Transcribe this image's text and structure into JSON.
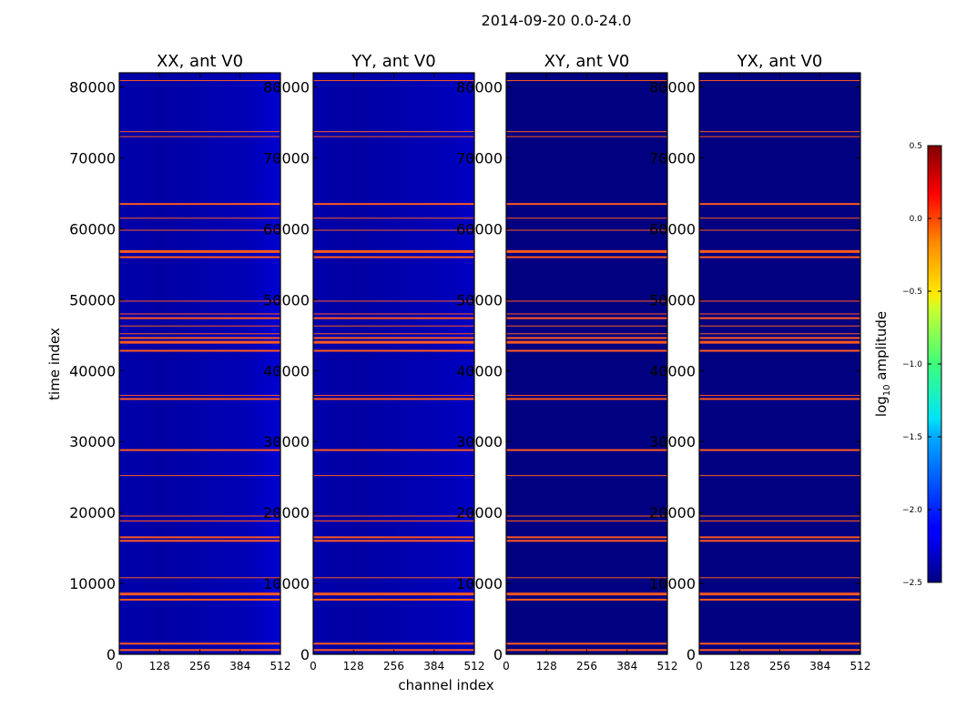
{
  "suptitle": "2014-09-20 0.0-24.0",
  "xlabel": "channel index",
  "ylabel": "time index",
  "colorbar": {
    "label_main": "log",
    "label_sub": "10",
    "label_rest": " amplitude",
    "range": [
      -2.5,
      0.5
    ],
    "ticks": [
      -2.5,
      -2.0,
      -1.5,
      -1.0,
      -0.5,
      0.0,
      0.5
    ],
    "tick_labels": [
      "−2.5",
      "−2.0",
      "−1.5",
      "−1.0",
      "−0.5",
      "0.0",
      "0.5"
    ]
  },
  "chart_data": {
    "type": "heatmap",
    "colormap": "jet",
    "xlim": [
      0,
      512
    ],
    "ylim": [
      0,
      82000
    ],
    "xticks": [
      0,
      128,
      256,
      384,
      512
    ],
    "yticks": [
      0,
      10000,
      20000,
      30000,
      40000,
      50000,
      60000,
      70000,
      80000
    ],
    "panels": [
      {
        "title": "XX, ant V0",
        "base_log_amp": -2.4,
        "edge_log_amp": -2.25,
        "vignette": true
      },
      {
        "title": "YY, ant V0",
        "base_log_amp": -2.4,
        "edge_log_amp": -2.3,
        "vignette": true
      },
      {
        "title": "XY, ant V0",
        "base_log_amp": -2.5,
        "edge_log_amp": -2.5,
        "vignette": false
      },
      {
        "title": "YX, ant V0",
        "base_log_amp": -2.5,
        "edge_log_amp": -2.5,
        "vignette": false
      }
    ],
    "flagged_rows": [
      {
        "t": 80900,
        "thick": 1
      },
      {
        "t": 73700,
        "thick": 1
      },
      {
        "t": 73000,
        "thick": 1
      },
      {
        "t": 63500,
        "thick": 2
      },
      {
        "t": 61500,
        "thick": 1
      },
      {
        "t": 59800,
        "thick": 1
      },
      {
        "t": 56800,
        "thick": 3
      },
      {
        "t": 56000,
        "thick": 2
      },
      {
        "t": 49800,
        "thick": 1
      },
      {
        "t": 48000,
        "thick": 1
      },
      {
        "t": 47400,
        "thick": 2
      },
      {
        "t": 46300,
        "thick": 1
      },
      {
        "t": 45200,
        "thick": 1
      },
      {
        "t": 44600,
        "thick": 2
      },
      {
        "t": 44000,
        "thick": 3
      },
      {
        "t": 42800,
        "thick": 2
      },
      {
        "t": 36500,
        "thick": 1
      },
      {
        "t": 36000,
        "thick": 2
      },
      {
        "t": 28800,
        "thick": 2
      },
      {
        "t": 25200,
        "thick": 1
      },
      {
        "t": 19500,
        "thick": 1
      },
      {
        "t": 18800,
        "thick": 1
      },
      {
        "t": 16500,
        "thick": 2
      },
      {
        "t": 16000,
        "thick": 2
      },
      {
        "t": 10800,
        "thick": 1
      },
      {
        "t": 8500,
        "thick": 3
      },
      {
        "t": 7700,
        "thick": 2
      },
      {
        "t": 1500,
        "thick": 2
      },
      {
        "t": 600,
        "thick": 2
      }
    ],
    "flagged_log_amp": 0.0
  },
  "colors": {
    "flag_line": "#ff5a1e",
    "frame": "#000000"
  }
}
